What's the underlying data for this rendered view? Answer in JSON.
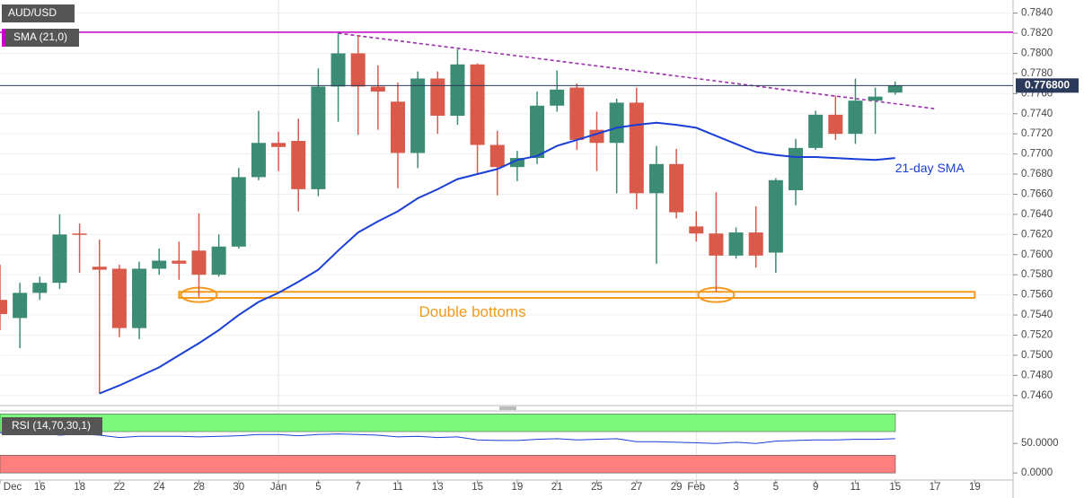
{
  "chart_data": [
    {
      "type": "candlestick",
      "symbol": "AUD/USD",
      "indicator": "SMA (21,0)",
      "categories": [
        "Dec",
        null,
        "16",
        null,
        "18",
        null,
        "22",
        null,
        "24",
        null,
        "28",
        null,
        "30",
        null,
        "Jan",
        null,
        "5",
        null,
        "7",
        null,
        "11",
        null,
        "13",
        null,
        "15",
        null,
        "19",
        null,
        "21",
        null,
        "25",
        null,
        "27",
        null,
        "29",
        "Feb",
        null,
        "3",
        null,
        "5",
        null,
        "9",
        null,
        "11",
        null,
        "15",
        null,
        "17",
        null,
        "19"
      ],
      "open": [
        0.7555,
        0.7537,
        0.7562,
        0.7572,
        0.7621,
        0.7588,
        0.7586,
        0.7527,
        0.7586,
        0.7594,
        0.7604,
        0.758,
        0.7608,
        0.7677,
        0.7711,
        0.7713,
        0.7665,
        0.7767,
        0.78,
        0.7767,
        0.7752,
        0.7701,
        0.7775,
        0.7738,
        0.7789,
        0.7709,
        0.7687,
        0.7696,
        0.7748,
        0.7766,
        0.7724,
        0.7711,
        0.7751,
        0.7661,
        0.769,
        0.7628,
        0.7621,
        0.7599,
        0.7622,
        0.7602,
        0.7664,
        0.7706,
        0.7739,
        0.772,
        0.7753,
        0.7761,
        null,
        null,
        null,
        null
      ],
      "high": [
        0.759,
        0.7572,
        0.7578,
        0.764,
        0.7631,
        0.7615,
        0.759,
        0.7593,
        0.7606,
        0.7613,
        0.7641,
        0.762,
        0.7686,
        0.7743,
        0.7722,
        0.7735,
        0.7785,
        0.782,
        0.7818,
        0.7788,
        0.7771,
        0.7782,
        0.7782,
        0.7804,
        0.779,
        0.7723,
        0.7703,
        0.7762,
        0.7783,
        0.777,
        0.7742,
        0.7755,
        0.7766,
        0.7708,
        0.7705,
        0.7643,
        0.7662,
        0.7627,
        0.7648,
        0.7676,
        0.7715,
        0.7743,
        0.7758,
        0.7775,
        0.7766,
        0.7772,
        null,
        null,
        null,
        null
      ],
      "low": [
        0.7525,
        0.7507,
        0.7555,
        0.7566,
        0.7582,
        0.7462,
        0.7518,
        0.7516,
        0.758,
        0.7575,
        0.7558,
        0.7578,
        0.7606,
        0.7674,
        0.7683,
        0.7643,
        0.7658,
        0.7732,
        0.7719,
        0.7724,
        0.7666,
        0.7686,
        0.772,
        0.7729,
        0.768,
        0.7659,
        0.7673,
        0.769,
        0.7742,
        0.7704,
        0.7683,
        0.7661,
        0.7645,
        0.7591,
        0.7636,
        0.7613,
        0.7563,
        0.7596,
        0.7587,
        0.7582,
        0.7649,
        0.7704,
        0.7714,
        0.771,
        0.772,
        0.7759,
        null,
        null,
        null,
        null
      ],
      "close": [
        0.7541,
        0.7562,
        0.7572,
        0.762,
        0.762,
        0.7585,
        0.7527,
        0.7586,
        0.7594,
        0.7591,
        0.758,
        0.7608,
        0.7677,
        0.7711,
        0.7707,
        0.7665,
        0.7767,
        0.78,
        0.7767,
        0.7762,
        0.7701,
        0.7775,
        0.7738,
        0.7789,
        0.7709,
        0.7687,
        0.7696,
        0.7748,
        0.7764,
        0.7714,
        0.7711,
        0.7751,
        0.7661,
        0.769,
        0.7642,
        0.7621,
        0.7599,
        0.7622,
        0.7599,
        0.7674,
        0.7706,
        0.7739,
        0.772,
        0.7753,
        0.7757,
        0.7768,
        null,
        null,
        null,
        null
      ],
      "up_color": "#3b8b75",
      "down_color": "#d95a4b",
      "sma": [
        null,
        null,
        null,
        null,
        null,
        0.7462,
        0.747,
        0.7479,
        0.7488,
        0.75,
        0.7512,
        0.7525,
        0.754,
        0.7553,
        0.7562,
        0.7573,
        0.7585,
        0.7604,
        0.7622,
        0.7633,
        0.7643,
        0.7656,
        0.7665,
        0.7675,
        0.768,
        0.7685,
        0.7694,
        0.7698,
        0.7708,
        0.7714,
        0.772,
        0.7726,
        0.7729,
        0.7731,
        0.7729,
        0.7726,
        0.7718,
        0.771,
        0.7702,
        0.7699,
        0.7697,
        0.7697,
        0.7696,
        0.7695,
        0.7694,
        0.7696,
        null,
        null,
        null,
        null
      ],
      "sma_color": "#1a3fd6",
      "sma_label": "21-day SMA",
      "level": {
        "value": 0.7821,
        "color": "#c800c8"
      },
      "trendline": {
        "x": [
          17,
          47
        ],
        "y": [
          0.782,
          0.7745
        ],
        "color": "#9b2fae"
      },
      "support_band": {
        "from": 9,
        "to": 49,
        "low": 0.7557,
        "high": 0.7563,
        "color": "#f39a1c"
      },
      "bottoms": {
        "x": [
          10,
          36
        ],
        "y": [
          0.756,
          0.756
        ]
      },
      "annotation": "Double bottoms",
      "last": {
        "value": 0.7768,
        "label": "0.776800"
      },
      "ylim": [
        0.745,
        0.7853
      ],
      "yticks": [
        {
          "value": 0.784,
          "label": "0.7840"
        },
        {
          "value": 0.782,
          "label": "0.7820"
        },
        {
          "value": 0.78,
          "label": "0.7800"
        },
        {
          "value": 0.778,
          "label": "0.7780"
        },
        {
          "value": 0.776,
          "label": "0.7760"
        },
        {
          "value": 0.774,
          "label": "0.7740"
        },
        {
          "value": 0.772,
          "label": "0.7720"
        },
        {
          "value": 0.77,
          "label": "0.7700"
        },
        {
          "value": 0.768,
          "label": "0.7680"
        },
        {
          "value": 0.766,
          "label": "0.7660"
        },
        {
          "value": 0.764,
          "label": "0.7640"
        },
        {
          "value": 0.762,
          "label": "0.7620"
        },
        {
          "value": 0.76,
          "label": "0.7600"
        },
        {
          "value": 0.758,
          "label": "0.7580"
        },
        {
          "value": 0.756,
          "label": "0.7560"
        },
        {
          "value": 0.754,
          "label": "0.7540"
        },
        {
          "value": 0.752,
          "label": "0.7520"
        },
        {
          "value": 0.75,
          "label": "0.7500"
        },
        {
          "value": 0.748,
          "label": "0.7480"
        },
        {
          "value": 0.746,
          "label": "0.7460"
        }
      ],
      "grid": true
    },
    {
      "type": "line",
      "indicator": "RSI (14,70,30,1)",
      "values": [
        68,
        66,
        68,
        64,
        66,
        64,
        60,
        62,
        62,
        62,
        61,
        62,
        63,
        65,
        65,
        63,
        65,
        66,
        65,
        64,
        61,
        62,
        60,
        61,
        56,
        55,
        55,
        57,
        58,
        56,
        57,
        58,
        53,
        53,
        52,
        51,
        50,
        52,
        50,
        54,
        55,
        56,
        56,
        57,
        57,
        58,
        null,
        null,
        null,
        null
      ],
      "color": "#1a3fd6",
      "bands": [
        {
          "from": 70,
          "to": 100,
          "color": "#7cf97c"
        },
        {
          "from": 0,
          "to": 30,
          "color": "#ff7f7f"
        }
      ],
      "ylim": [
        -12,
        108
      ],
      "yticks": [
        {
          "value": 50,
          "label": "50.0000"
        },
        {
          "value": 0,
          "label": "0.0000"
        }
      ]
    }
  ]
}
